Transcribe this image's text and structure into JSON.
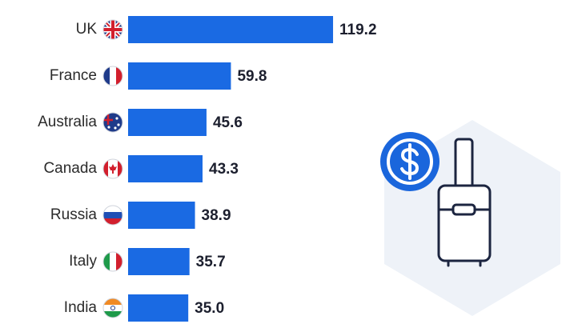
{
  "chart_data": {
    "type": "bar",
    "orientation": "horizontal",
    "categories": [
      "UK",
      "France",
      "Australia",
      "Canada",
      "Russia",
      "Italy",
      "India"
    ],
    "values": [
      119.2,
      59.8,
      45.6,
      43.3,
      38.9,
      35.7,
      35.0
    ],
    "value_labels": [
      "119.2",
      "59.8",
      "45.6",
      "43.3",
      "38.9",
      "35.7",
      "35.0"
    ],
    "color": "#1a6ae3"
  }
}
